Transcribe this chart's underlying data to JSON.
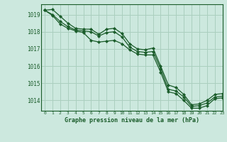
{
  "title": "Graphe pression niveau de la mer (hPa)",
  "background_color": "#cce8de",
  "grid_color": "#aacfbf",
  "line_color": "#1a5c2a",
  "marker_color": "#1a5c2a",
  "xlabel_color": "#1a5c2a",
  "ylabel_labels": [
    1014,
    1015,
    1016,
    1017,
    1018,
    1019
  ],
  "xlim": [
    -0.5,
    23
  ],
  "ylim": [
    1013.4,
    1019.6
  ],
  "series1": [
    1019.25,
    1019.3,
    1018.9,
    1018.5,
    1018.2,
    1018.15,
    1018.15,
    1017.85,
    1018.15,
    1018.2,
    1017.9,
    1017.3,
    1017.0,
    1016.95,
    1017.05,
    1016.0,
    1014.9,
    1014.75,
    1014.35,
    1013.75,
    1013.8,
    1014.0,
    1014.35,
    1014.4
  ],
  "series2": [
    1019.25,
    1019.0,
    1018.6,
    1018.3,
    1018.1,
    1018.05,
    1018.0,
    1017.75,
    1017.95,
    1018.0,
    1017.7,
    1017.1,
    1016.85,
    1016.8,
    1016.85,
    1015.85,
    1014.65,
    1014.55,
    1014.2,
    1013.65,
    1013.7,
    1013.85,
    1014.2,
    1014.25
  ],
  "series3": [
    1019.25,
    1018.95,
    1018.45,
    1018.2,
    1018.05,
    1017.95,
    1017.5,
    1017.4,
    1017.45,
    1017.5,
    1017.3,
    1016.95,
    1016.7,
    1016.65,
    1016.65,
    1015.65,
    1014.5,
    1014.4,
    1014.0,
    1013.55,
    1013.55,
    1013.7,
    1014.1,
    1014.15
  ]
}
